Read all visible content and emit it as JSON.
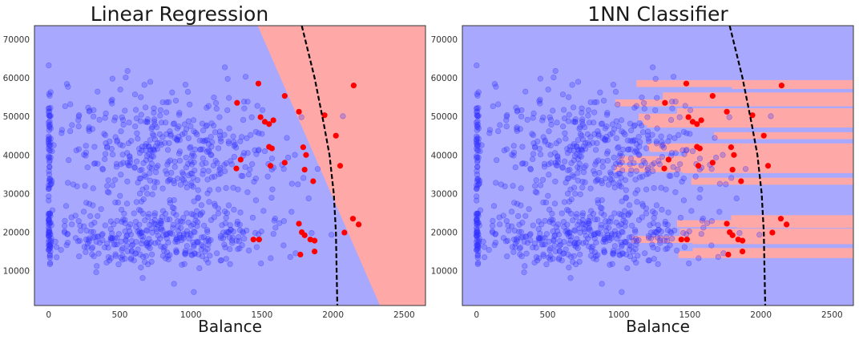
{
  "colors": {
    "class0_region": "#a8a8ff",
    "class1_region": "#ffa8a8",
    "class0_points": "#3333ff",
    "class1_points": "#ff0000",
    "boundary": "#000000"
  },
  "chart_data": [
    {
      "type": "scatter",
      "title": "Linear Regression",
      "xlabel": "Balance",
      "ylabel": "",
      "xlim": [
        -100,
        2650
      ],
      "ylim": [
        1000,
        73500
      ],
      "xticks": [
        "0",
        "500",
        "1000",
        "1500",
        "2000",
        "2500"
      ],
      "yticks": [
        "10000",
        "20000",
        "30000",
        "40000",
        "50000",
        "60000",
        "70000"
      ],
      "grid": false,
      "legend": "none",
      "decision_region": "linear",
      "linear_boundary": [
        [
          1470,
          73500
        ],
        [
          2330,
          1000
        ]
      ],
      "bayes_boundary": [
        [
          1780,
          73500
        ],
        [
          1870,
          60000
        ],
        [
          1935,
          48000
        ],
        [
          1975,
          40000
        ],
        [
          2005,
          30000
        ],
        [
          2020,
          20000
        ],
        [
          2025,
          10000
        ],
        [
          2030,
          1000
        ]
      ],
      "series": [
        {
          "class": "default-yes",
          "points": [
            [
              1475,
              58500
            ],
            [
              2145,
              58000
            ],
            [
              1660,
              55300
            ],
            [
              1325,
              53500
            ],
            [
              1760,
              51200
            ],
            [
              1940,
              50300
            ],
            [
              1490,
              49800
            ],
            [
              1520,
              48600
            ],
            [
              1580,
              49000
            ],
            [
              1550,
              48000
            ],
            [
              2020,
              45000
            ],
            [
              1550,
              42100
            ],
            [
              1790,
              42000
            ],
            [
              1570,
              41700
            ],
            [
              1810,
              40000
            ],
            [
              1350,
              38800
            ],
            [
              1560,
              37200
            ],
            [
              1660,
              38000
            ],
            [
              2050,
              37200
            ],
            [
              1800,
              36200
            ],
            [
              1320,
              36500
            ],
            [
              1860,
              33200
            ],
            [
              2140,
              23500
            ],
            [
              2180,
              22000
            ],
            [
              1760,
              22200
            ],
            [
              1780,
              20000
            ],
            [
              2080,
              19900
            ],
            [
              1800,
              19200
            ],
            [
              1840,
              18100
            ],
            [
              1870,
              17800
            ],
            [
              1440,
              18100
            ],
            [
              1480,
              18100
            ],
            [
              1870,
              15000
            ],
            [
              1770,
              14200
            ]
          ]
        }
      ]
    },
    {
      "type": "scatter",
      "title": "1NN Classifier",
      "xlabel": "Balance",
      "ylabel": "",
      "xlim": [
        -100,
        2650
      ],
      "ylim": [
        1000,
        73500
      ],
      "xticks": [
        "0",
        "500",
        "1000",
        "1500",
        "2000",
        "2500"
      ],
      "yticks": [
        "10000",
        "20000",
        "30000",
        "40000",
        "50000",
        "60000",
        "70000"
      ],
      "grid": false,
      "legend": "none",
      "decision_region": "nearest-neighbor",
      "bayes_boundary": [
        [
          1780,
          73500
        ],
        [
          1870,
          60000
        ],
        [
          1935,
          48000
        ],
        [
          1975,
          40000
        ],
        [
          2005,
          30000
        ],
        [
          2020,
          20000
        ],
        [
          2025,
          10000
        ],
        [
          2030,
          1000
        ]
      ],
      "series": [
        {
          "class": "default-yes",
          "points": [
            [
              1475,
              58500
            ],
            [
              2145,
              58000
            ],
            [
              1660,
              55300
            ],
            [
              1325,
              53500
            ],
            [
              1760,
              51200
            ],
            [
              1940,
              50300
            ],
            [
              1490,
              49800
            ],
            [
              1520,
              48600
            ],
            [
              1580,
              49000
            ],
            [
              1550,
              48000
            ],
            [
              2020,
              45000
            ],
            [
              1550,
              42100
            ],
            [
              1790,
              42000
            ],
            [
              1570,
              41700
            ],
            [
              1810,
              40000
            ],
            [
              1350,
              38800
            ],
            [
              1560,
              37200
            ],
            [
              1660,
              38000
            ],
            [
              2050,
              37200
            ],
            [
              1800,
              36200
            ],
            [
              1320,
              36500
            ],
            [
              1860,
              33200
            ],
            [
              2140,
              23500
            ],
            [
              2180,
              22000
            ],
            [
              1760,
              22200
            ],
            [
              1780,
              20000
            ],
            [
              2080,
              19900
            ],
            [
              1800,
              19200
            ],
            [
              1840,
              18100
            ],
            [
              1870,
              17800
            ],
            [
              1440,
              18100
            ],
            [
              1480,
              18100
            ],
            [
              1870,
              15000
            ],
            [
              1770,
              14200
            ]
          ]
        }
      ]
    }
  ]
}
